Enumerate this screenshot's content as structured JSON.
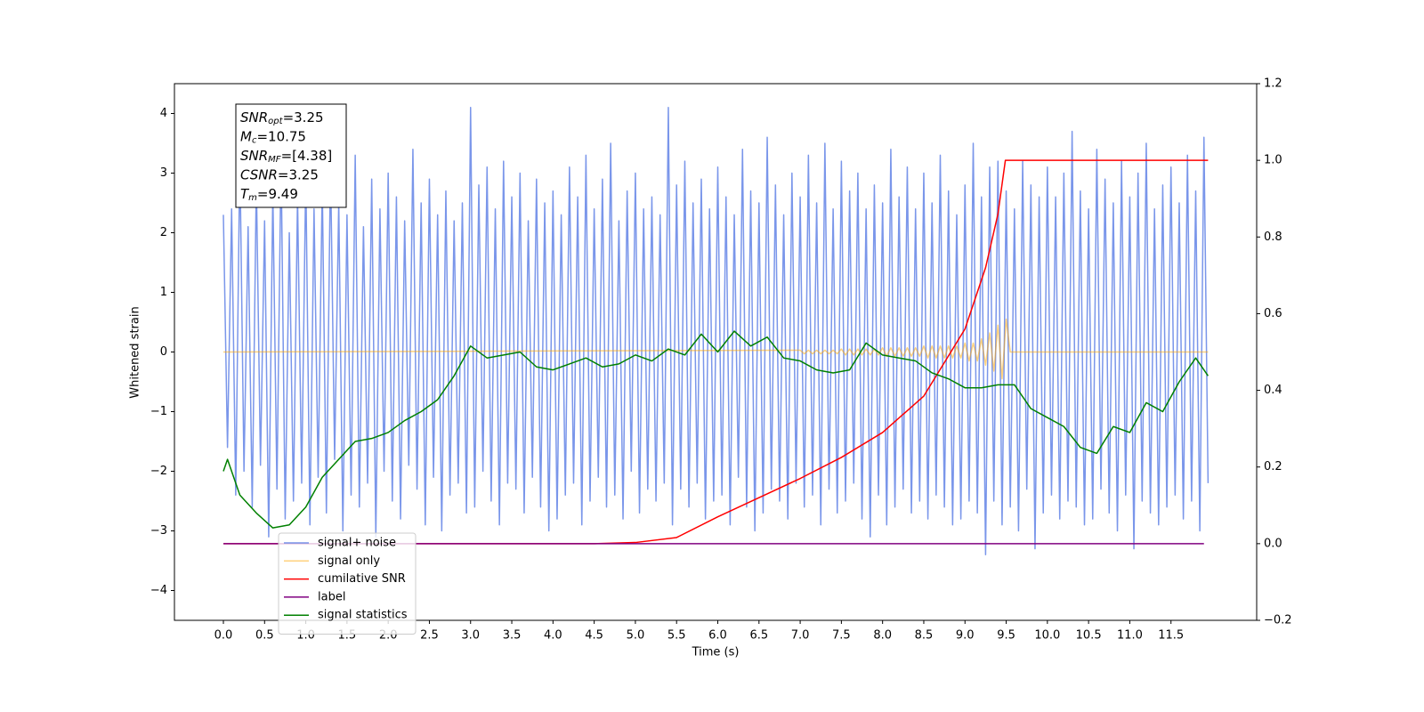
{
  "chart_data": {
    "type": "line",
    "xlabel": "Time (s)",
    "ylabel": "Whitened strain",
    "xlim": [
      -0.594,
      12.54
    ],
    "ylim": [
      -4.5,
      4.5
    ],
    "y2lim": [
      -0.2,
      1.2
    ],
    "xticks": [
      {
        "value": 0,
        "label": "0.0"
      },
      0.5,
      {
        "value": 1,
        "label": "1.0"
      },
      1.5,
      {
        "value": 2,
        "label": "2.0"
      },
      2.5,
      {
        "value": 3,
        "label": "3.0"
      },
      3.5,
      {
        "value": 4,
        "label": "4.0"
      },
      4.5,
      {
        "value": 5,
        "label": "5.0"
      },
      5.5,
      {
        "value": 6,
        "label": "6.0"
      },
      6.5,
      {
        "value": 7,
        "label": "7.0"
      },
      7.5,
      {
        "value": 8,
        "label": "8.0"
      },
      8.5,
      {
        "value": 9,
        "label": "9.0"
      },
      9.5,
      {
        "value": 10,
        "label": "10.0"
      },
      10.5,
      {
        "value": 11,
        "label": "11.0"
      },
      11.5
    ],
    "yticks": [
      {
        "value": -4,
        "label": "−4"
      },
      {
        "value": -3,
        "label": "−3"
      },
      {
        "value": -2,
        "label": "−2"
      },
      {
        "value": -1,
        "label": "−1"
      },
      0,
      1,
      2,
      3,
      4
    ],
    "y2ticks": [
      {
        "value": -0.2,
        "label": "−0.2"
      },
      {
        "value": 0,
        "label": "0.0"
      },
      0.2,
      0.4,
      0.6,
      0.8,
      {
        "value": 1,
        "label": "1.0"
      },
      1.2
    ],
    "legend": "lower left",
    "annotations": [
      {
        "symbol": "SNR",
        "sub": "opt",
        "text": "=3.25"
      },
      {
        "symbol": "M",
        "sub": "c",
        "text": "=10.75"
      },
      {
        "symbol": "SNR",
        "sub": "MF",
        "text": "=[4.38]"
      },
      {
        "symbol": "CSNR",
        "text": "=3.25"
      },
      {
        "symbol": "T",
        "sub": "m",
        "text": "=9.49"
      }
    ],
    "series": [
      {
        "name": "signal+ noise",
        "color": "#4169e1",
        "alpha": 0.7,
        "axis": "y",
        "x": [
          0,
          0.05,
          0.1,
          0.15,
          0.2,
          0.25,
          0.3,
          0.35,
          0.4,
          0.45,
          0.5,
          0.55,
          0.6,
          0.65,
          0.7,
          0.75,
          0.8,
          0.85,
          0.9,
          0.95,
          1,
          1.05,
          1.1,
          1.15,
          1.2,
          1.25,
          1.3,
          1.35,
          1.4,
          1.45,
          1.5,
          1.55,
          1.6,
          1.65,
          1.7,
          1.75,
          1.8,
          1.85,
          1.9,
          1.95,
          2,
          2.05,
          2.1,
          2.15,
          2.2,
          2.25,
          2.3,
          2.35,
          2.4,
          2.45,
          2.5,
          2.55,
          2.6,
          2.65,
          2.7,
          2.75,
          2.8,
          2.85,
          2.9,
          2.95,
          3,
          3.05,
          3.1,
          3.15,
          3.2,
          3.25,
          3.3,
          3.35,
          3.4,
          3.45,
          3.5,
          3.55,
          3.6,
          3.65,
          3.7,
          3.75,
          3.8,
          3.85,
          3.9,
          3.95,
          4,
          4.05,
          4.1,
          4.15,
          4.2,
          4.25,
          4.3,
          4.35,
          4.4,
          4.45,
          4.5,
          4.55,
          4.6,
          4.65,
          4.7,
          4.75,
          4.8,
          4.85,
          4.9,
          4.95,
          5,
          5.05,
          5.1,
          5.15,
          5.2,
          5.25,
          5.3,
          5.35,
          5.4,
          5.45,
          5.5,
          5.55,
          5.6,
          5.65,
          5.7,
          5.75,
          5.8,
          5.85,
          5.9,
          5.95,
          6,
          6.05,
          6.1,
          6.15,
          6.2,
          6.25,
          6.3,
          6.35,
          6.4,
          6.45,
          6.5,
          6.55,
          6.6,
          6.65,
          6.7,
          6.75,
          6.8,
          6.85,
          6.9,
          6.95,
          7,
          7.05,
          7.1,
          7.15,
          7.2,
          7.25,
          7.3,
          7.35,
          7.4,
          7.45,
          7.5,
          7.55,
          7.6,
          7.65,
          7.7,
          7.75,
          7.8,
          7.85,
          7.9,
          7.95,
          8,
          8.05,
          8.1,
          8.15,
          8.2,
          8.25,
          8.3,
          8.35,
          8.4,
          8.45,
          8.5,
          8.55,
          8.6,
          8.65,
          8.7,
          8.75,
          8.8,
          8.85,
          8.9,
          8.95,
          9,
          9.05,
          9.1,
          9.15,
          9.2,
          9.25,
          9.3,
          9.35,
          9.4,
          9.45,
          9.5,
          9.55,
          9.6,
          9.65,
          9.7,
          9.75,
          9.8,
          9.85,
          9.9,
          9.95,
          10,
          10.05,
          10.1,
          10.15,
          10.2,
          10.25,
          10.3,
          10.35,
          10.4,
          10.45,
          10.5,
          10.55,
          10.6,
          10.65,
          10.7,
          10.75,
          10.8,
          10.85,
          10.9,
          10.95,
          11,
          11.05,
          11.1,
          11.15,
          11.2,
          11.25,
          11.3,
          11.35,
          11.4,
          11.45,
          11.5,
          11.55,
          11.6,
          11.65,
          11.7,
          11.75,
          11.8,
          11.85,
          11.9,
          11.95
        ],
        "values": [
          2.3,
          -1.6,
          2.4,
          -2.4,
          3.3,
          -2.0,
          2.1,
          -2.6,
          2.9,
          -1.9,
          2.2,
          -3.1,
          2.7,
          -2.3,
          3.3,
          -2.8,
          2.0,
          -2.5,
          2.6,
          -2.2,
          3.0,
          -2.9,
          2.4,
          -2.1,
          2.8,
          -2.7,
          3.2,
          -1.8,
          2.5,
          -3.0,
          2.3,
          -2.4,
          3.3,
          -2.6,
          2.1,
          -2.2,
          2.9,
          -3.1,
          2.4,
          -2.0,
          3.0,
          -2.5,
          2.6,
          -2.8,
          2.2,
          -1.9,
          3.4,
          -2.3,
          2.5,
          -2.9,
          2.9,
          -2.1,
          2.3,
          -3.0,
          2.7,
          -2.4,
          2.2,
          -2.2,
          2.5,
          -2.7,
          4.1,
          -2.6,
          2.8,
          -2.0,
          3.1,
          -2.5,
          2.4,
          -2.9,
          3.2,
          -2.2,
          2.6,
          -2.3,
          3.0,
          -2.7,
          2.2,
          -2.1,
          2.9,
          -2.6,
          2.5,
          -3.0,
          2.7,
          -2.8,
          2.3,
          -2.4,
          3.1,
          -2.2,
          2.6,
          -2.9,
          3.3,
          -2.5,
          2.4,
          -2.1,
          2.9,
          -2.6,
          3.5,
          -2.4,
          2.2,
          -2.8,
          2.7,
          -2.0,
          3.0,
          -2.7,
          2.4,
          -2.3,
          2.6,
          -2.5,
          2.3,
          -2.2,
          4.1,
          -2.9,
          2.8,
          -2.3,
          3.2,
          -2.6,
          2.5,
          -2.2,
          2.9,
          -2.8,
          2.4,
          -2.5,
          3.1,
          -2.4,
          2.6,
          -2.9,
          2.3,
          -2.1,
          3.4,
          -2.6,
          2.7,
          -3.0,
          2.5,
          -2.7,
          3.6,
          -2.3,
          2.8,
          -2.5,
          2.3,
          -2.8,
          3.0,
          -2.2,
          2.6,
          -2.6,
          3.3,
          -2.4,
          2.5,
          -2.9,
          3.5,
          -2.3,
          2.4,
          -2.7,
          3.2,
          -2.5,
          2.7,
          -2.2,
          3.0,
          -2.8,
          2.4,
          -3.1,
          2.8,
          -2.4,
          2.5,
          -2.9,
          3.4,
          -2.6,
          2.6,
          -2.3,
          3.1,
          -2.7,
          2.4,
          -2.5,
          3.0,
          -2.8,
          2.5,
          -2.4,
          3.3,
          -2.6,
          2.7,
          -2.9,
          2.3,
          -2.8,
          2.8,
          -2.5,
          3.5,
          -2.7,
          2.6,
          -3.4,
          3.1,
          -2.5,
          3.2,
          -2.9,
          2.7,
          -2.6,
          2.4,
          -3.0,
          3.2,
          -2.3,
          2.8,
          -3.3,
          2.6,
          -2.7,
          3.1,
          -2.4,
          2.6,
          -2.8,
          3.0,
          -2.5,
          3.7,
          -2.6,
          2.7,
          -2.9,
          2.4,
          -2.8,
          3.4,
          -2.3,
          2.9,
          -2.7,
          2.5,
          -3.0,
          3.2,
          -2.4,
          2.6,
          -3.3,
          3.0,
          -2.5,
          3.5,
          -2.7,
          2.4,
          -2.9,
          2.8,
          -2.6,
          3.1,
          -2.4,
          2.5,
          -2.8,
          3.3,
          -2.5,
          2.7,
          -3.0,
          3.6,
          -2.2
        ]
      },
      {
        "name": "signal only",
        "color": "#ffa500",
        "alpha": 0.5,
        "axis": "y",
        "x": [
          0,
          7,
          7.05,
          7.1,
          7.15,
          7.2,
          7.25,
          7.3,
          7.35,
          7.4,
          7.45,
          7.5,
          7.55,
          7.6,
          7.65,
          7.7,
          7.75,
          7.8,
          7.85,
          7.9,
          7.95,
          8,
          8.05,
          8.1,
          8.15,
          8.2,
          8.25,
          8.3,
          8.35,
          8.4,
          8.45,
          8.5,
          8.55,
          8.6,
          8.65,
          8.7,
          8.75,
          8.8,
          8.85,
          8.9,
          8.95,
          9,
          9.05,
          9.1,
          9.15,
          9.2,
          9.25,
          9.3,
          9.35,
          9.4,
          9.45,
          9.5,
          9.55,
          11.95
        ],
        "values": [
          0,
          0.03,
          -0.03,
          0.03,
          -0.03,
          0.03,
          -0.03,
          0.03,
          -0.03,
          0.03,
          -0.03,
          0.05,
          -0.05,
          0.05,
          -0.05,
          0.05,
          -0.05,
          0.05,
          -0.05,
          0.05,
          -0.05,
          0.07,
          -0.07,
          0.07,
          -0.07,
          0.07,
          -0.07,
          0.07,
          -0.07,
          0.07,
          -0.07,
          0.1,
          -0.1,
          0.1,
          -0.1,
          0.1,
          -0.1,
          0.1,
          -0.1,
          0.1,
          -0.1,
          0.15,
          -0.15,
          0.15,
          -0.15,
          0.22,
          -0.22,
          0.32,
          -0.32,
          0.45,
          -0.45,
          0.55,
          0,
          0
        ]
      },
      {
        "name": "cumilative SNR",
        "color": "#ff0000",
        "alpha": 1,
        "axis": "y2",
        "x": [
          0,
          4.5,
          5,
          5.5,
          6,
          6.5,
          7,
          7.5,
          8,
          8.5,
          9,
          9.25,
          9.4,
          9.49,
          11.95
        ],
        "values": [
          0,
          0,
          0.003,
          0.016,
          0.07,
          0.12,
          0.17,
          0.225,
          0.29,
          0.385,
          0.56,
          0.72,
          0.86,
          1,
          1
        ]
      },
      {
        "name": "label",
        "color": "#800080",
        "alpha": 1,
        "axis": "y2",
        "x": [
          0,
          11.9
        ],
        "values": [
          0,
          0
        ]
      },
      {
        "name": "signal statistics",
        "color": "#008000",
        "alpha": 1,
        "axis": "y",
        "x": [
          0,
          0.05,
          0.2,
          0.4,
          0.6,
          0.8,
          1,
          1.2,
          1.4,
          1.6,
          1.8,
          2,
          2.2,
          2.4,
          2.6,
          2.8,
          3,
          3.2,
          3.4,
          3.6,
          3.8,
          4,
          4.2,
          4.4,
          4.6,
          4.8,
          5,
          5.2,
          5.4,
          5.6,
          5.8,
          6,
          6.2,
          6.4,
          6.6,
          6.8,
          7,
          7.2,
          7.4,
          7.6,
          7.8,
          8,
          8.2,
          8.4,
          8.6,
          8.8,
          9,
          9.2,
          9.4,
          9.6,
          9.8,
          10,
          10.2,
          10.4,
          10.6,
          10.8,
          11,
          11.2,
          11.4,
          11.6,
          11.8,
          11.95
        ],
        "values": [
          -2.0,
          -1.8,
          -2.4,
          -2.7,
          -2.95,
          -2.9,
          -2.6,
          -2.1,
          -1.8,
          -1.5,
          -1.45,
          -1.35,
          -1.15,
          -1.0,
          -0.8,
          -0.4,
          0.1,
          -0.1,
          -0.05,
          0.0,
          -0.25,
          -0.3,
          -0.2,
          -0.1,
          -0.25,
          -0.2,
          -0.05,
          -0.15,
          0.05,
          -0.05,
          0.3,
          0.0,
          0.35,
          0.1,
          0.25,
          -0.1,
          -0.15,
          -0.3,
          -0.35,
          -0.3,
          0.15,
          -0.05,
          -0.1,
          -0.15,
          -0.35,
          -0.45,
          -0.6,
          -0.6,
          -0.55,
          -0.55,
          -0.95,
          -1.1,
          -1.25,
          -1.6,
          -1.7,
          -1.25,
          -1.35,
          -0.85,
          -1.0,
          -0.5,
          -0.1,
          -0.4
        ]
      }
    ]
  }
}
